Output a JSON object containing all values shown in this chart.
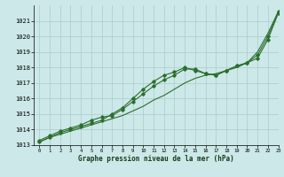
{
  "title": "Graphe pression niveau de la mer (hPa)",
  "bg_color": "#cce8e8",
  "grid_color": "#aacccc",
  "line_color": "#2d6e2d",
  "xlim": [
    -0.5,
    23
  ],
  "ylim": [
    1013,
    1022
  ],
  "xticks": [
    0,
    1,
    2,
    3,
    4,
    5,
    6,
    7,
    8,
    9,
    10,
    11,
    12,
    13,
    14,
    15,
    16,
    17,
    18,
    19,
    20,
    21,
    22,
    23
  ],
  "yticks": [
    1013,
    1014,
    1015,
    1016,
    1017,
    1018,
    1019,
    1020,
    1021
  ],
  "series_with_markers": [
    [
      1013.2,
      1013.5,
      1013.8,
      1014.0,
      1014.2,
      1014.4,
      1014.6,
      1015.0,
      1015.4,
      1016.0,
      1016.6,
      1017.1,
      1017.5,
      1017.7,
      1018.0,
      1017.8,
      1017.6,
      1017.5,
      1017.8,
      1018.1,
      1018.3,
      1018.6,
      1019.8,
      1021.5
    ],
    [
      1013.3,
      1013.6,
      1013.9,
      1014.1,
      1014.3,
      1014.6,
      1014.8,
      1014.9,
      1015.3,
      1015.8,
      1016.3,
      1016.8,
      1017.2,
      1017.5,
      1017.9,
      1017.9,
      1017.6,
      1017.5,
      1017.8,
      1018.1,
      1018.3,
      1018.8,
      1020.0,
      1021.6
    ]
  ],
  "series_smooth": [
    [
      1013.2,
      1013.5,
      1013.7,
      1013.9,
      1014.1,
      1014.3,
      1014.5,
      1014.7,
      1014.9,
      1015.2,
      1015.5,
      1015.9,
      1016.2,
      1016.6,
      1017.0,
      1017.3,
      1017.5,
      1017.6,
      1017.8,
      1018.0,
      1018.3,
      1019.0,
      1020.2,
      1021.6
    ]
  ]
}
